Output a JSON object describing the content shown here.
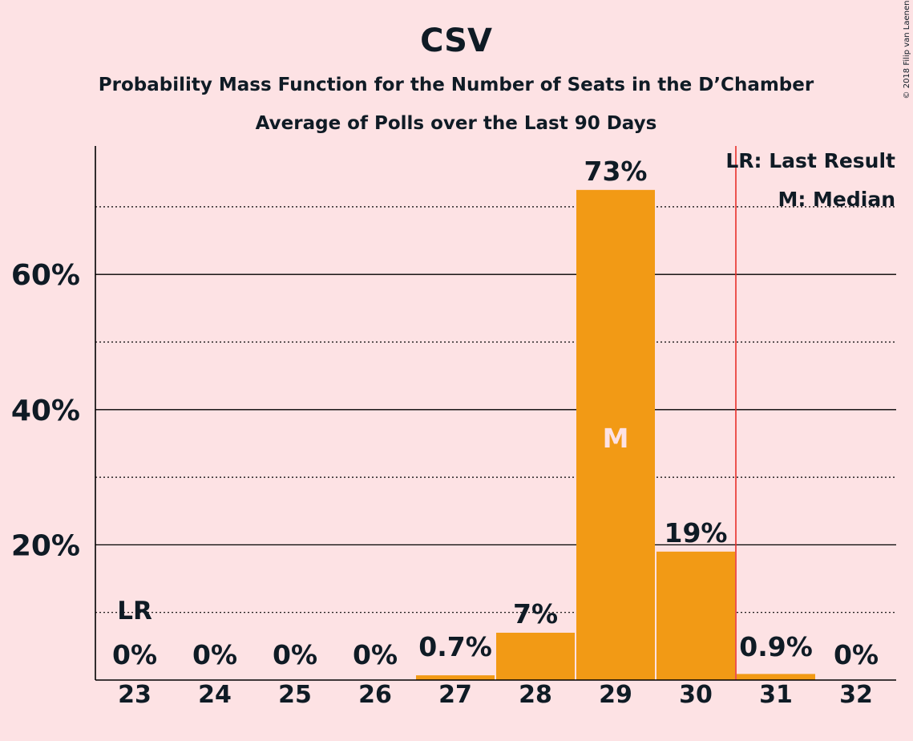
{
  "title": "CSV",
  "subtitle": "Probability Mass Function for the Number of Seats in the D’Chamber",
  "subtitle2": "Average of Polls over the Last 90 Days",
  "copyright": "© 2018 Filip van Laenen",
  "legend": {
    "lr": "LR: Last Result",
    "m": "M: Median"
  },
  "colors": {
    "bar": "#f29a15",
    "background": "#fde2e4",
    "last_result_line": "#e8302a",
    "text": "#0f1b25"
  },
  "chart_data": {
    "type": "bar",
    "categories": [
      "23",
      "24",
      "25",
      "26",
      "27",
      "28",
      "29",
      "30",
      "31",
      "32"
    ],
    "values": [
      0,
      0,
      0,
      0,
      0.7,
      7,
      72.5,
      19,
      0.9,
      0
    ],
    "labels": [
      "0%",
      "0%",
      "0%",
      "0%",
      "0.7%",
      "7%",
      "73%",
      "19%",
      "0.9%",
      "0%"
    ],
    "y_ticks": [
      20,
      40,
      60
    ],
    "y_tick_labels": [
      "20%",
      "40%",
      "60%"
    ],
    "minor_gridlines": [
      10,
      30,
      50,
      70
    ],
    "ylim": [
      0,
      79
    ],
    "last_result": {
      "category": "23",
      "label": "LR",
      "line_after_category": "30"
    },
    "median": {
      "category": "29",
      "label": "M"
    },
    "legend_position": "top-right"
  }
}
